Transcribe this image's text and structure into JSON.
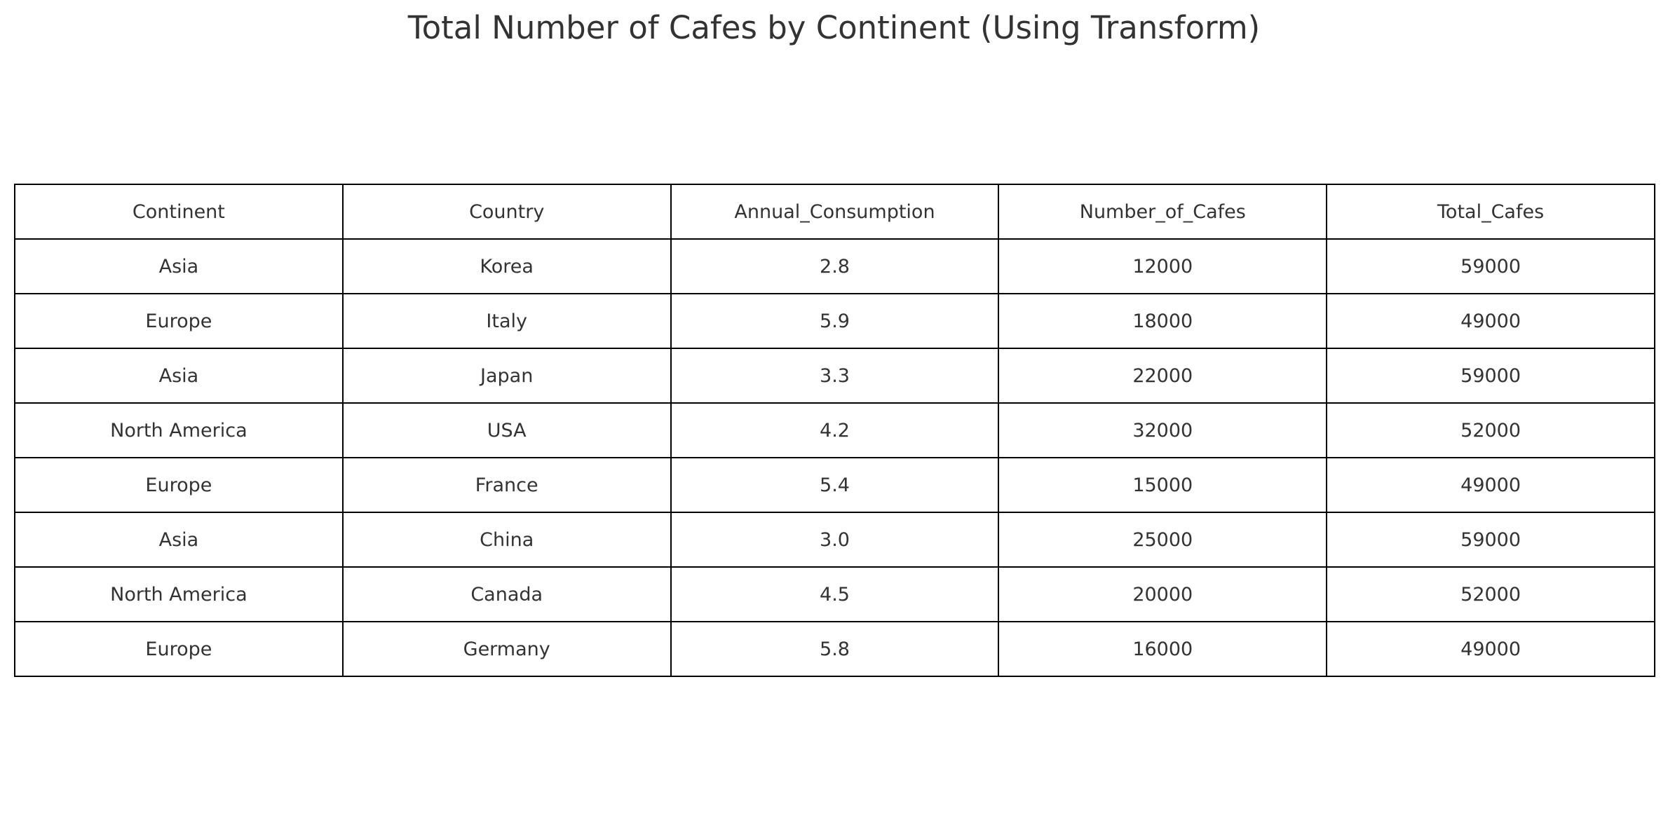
{
  "chart_data": {
    "type": "table",
    "title": "Total Number of Cafes by Continent (Using Transform)",
    "columns": [
      "Continent",
      "Country",
      "Annual_Consumption",
      "Number_of_Cafes",
      "Total_Cafes"
    ],
    "rows": [
      [
        "Asia",
        "Korea",
        "2.8",
        "12000",
        "59000"
      ],
      [
        "Europe",
        "Italy",
        "5.9",
        "18000",
        "49000"
      ],
      [
        "Asia",
        "Japan",
        "3.3",
        "22000",
        "59000"
      ],
      [
        "North America",
        "USA",
        "4.2",
        "32000",
        "52000"
      ],
      [
        "Europe",
        "France",
        "5.4",
        "15000",
        "49000"
      ],
      [
        "Asia",
        "China",
        "3.0",
        "25000",
        "59000"
      ],
      [
        "North America",
        "Canada",
        "4.5",
        "20000",
        "52000"
      ],
      [
        "Europe",
        "Germany",
        "5.8",
        "16000",
        "49000"
      ]
    ]
  }
}
